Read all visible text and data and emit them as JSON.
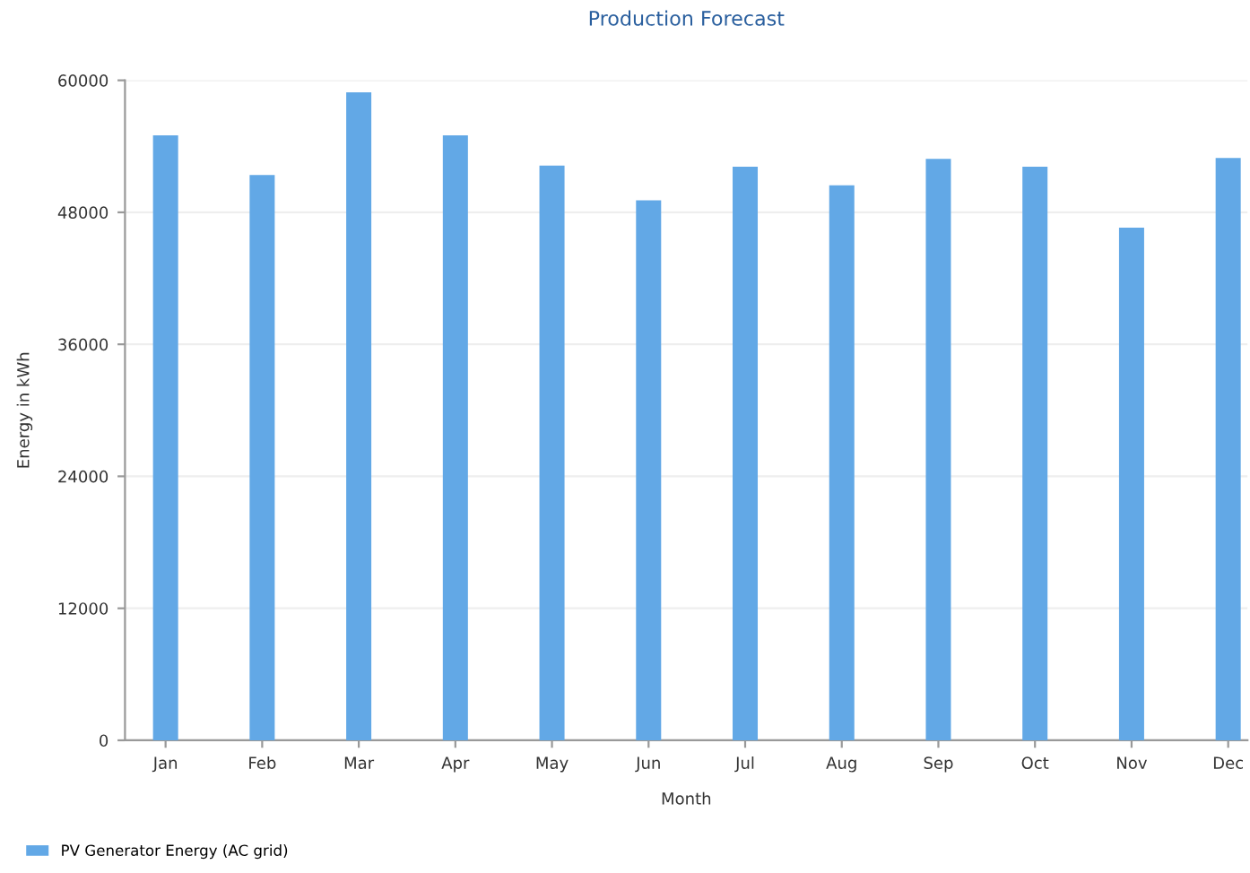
{
  "chart_data": {
    "type": "bar",
    "title": "Production Forecast",
    "xlabel": "Month",
    "ylabel": "Energy in kWh",
    "categories": [
      "Jan",
      "Feb",
      "Mar",
      "Apr",
      "May",
      "Jun",
      "Jul",
      "Aug",
      "Sep",
      "Oct",
      "Nov",
      "Dec"
    ],
    "series": [
      {
        "name": "PV Generator Energy (AC grid)",
        "color": "#62a8e6",
        "values": [
          55000,
          51400,
          58900,
          55000,
          52250,
          49100,
          52150,
          50450,
          52850,
          52150,
          46600,
          52950
        ]
      }
    ],
    "ylim": [
      0,
      60000
    ],
    "yticks": [
      0,
      12000,
      24000,
      36000,
      48000,
      60000
    ],
    "grid": "y",
    "legend": "bottom left"
  }
}
